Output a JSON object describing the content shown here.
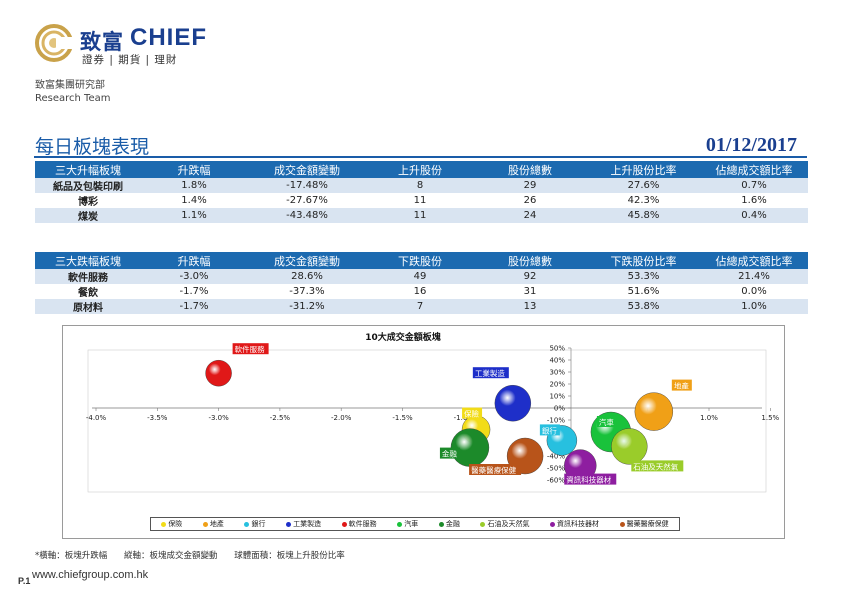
{
  "header": {
    "logo_cn": "致富",
    "logo_en": "CHIEF",
    "logo_sub": "證券 | 期貨 | 理財",
    "dept_cn": "致富集團研究部",
    "dept_en": "Research Team"
  },
  "page_title": "每日板塊表現",
  "date": "01/12/2017",
  "rise_table": {
    "headers": [
      "三大升幅板塊",
      "升跌幅",
      "成交金額變動",
      "上升股份",
      "股份總數",
      "上升股份比率",
      "佔總成交額比率"
    ],
    "rows": [
      [
        "紙品及包裝印刷",
        "1.8%",
        "-17.48%",
        "8",
        "29",
        "27.6%",
        "0.7%"
      ],
      [
        "博彩",
        "1.4%",
        "-27.67%",
        "11",
        "26",
        "42.3%",
        "1.6%"
      ],
      [
        "煤炭",
        "1.1%",
        "-43.48%",
        "11",
        "24",
        "45.8%",
        "0.4%"
      ]
    ]
  },
  "fall_table": {
    "headers": [
      "三大跌幅板塊",
      "升跌幅",
      "成交金額變動",
      "下跌股份",
      "股份總數",
      "下跌股份比率",
      "佔總成交額比率"
    ],
    "rows": [
      [
        "軟件服務",
        "-3.0%",
        "28.6%",
        "49",
        "92",
        "53.3%",
        "21.4%"
      ],
      [
        "餐飲",
        "-1.7%",
        "-37.3%",
        "16",
        "31",
        "51.6%",
        "0.0%"
      ],
      [
        "原材料",
        "-1.7%",
        "-31.2%",
        "7",
        "13",
        "53.8%",
        "1.0%"
      ]
    ]
  },
  "chart_data": {
    "type": "scatter",
    "title": "10大成交金額板塊",
    "x_ticks": [
      "-4.0%",
      "-3.5%",
      "-3.0%",
      "-2.5%",
      "-2.0%",
      "-1.5%",
      "-1.0%",
      "0.5%",
      "1.0%",
      "1.5%"
    ],
    "y_ticks": [
      "50%",
      "40%",
      "30%",
      "20%",
      "10%",
      "0%",
      "-10%",
      "-20%",
      "-30%",
      "-40%",
      "-50%",
      "-60%"
    ],
    "xlim": [
      -4.0,
      1.5
    ],
    "ylim": [
      -60,
      50
    ],
    "series": [
      {
        "name": "保險",
        "x": -0.9,
        "y": -18,
        "color": "#f2dc18",
        "label": "保險",
        "label_color": "#f2dc18"
      },
      {
        "name": "地產",
        "x": 0.55,
        "y": -3,
        "color": "#f0a017",
        "label": "地產",
        "label_color": "#f0a017"
      },
      {
        "name": "銀行",
        "x": -0.2,
        "y": -27,
        "color": "#27c0df",
        "label": "銀行",
        "label_color": "#27c0df"
      },
      {
        "name": "工業製造",
        "x": -0.6,
        "y": 4,
        "color": "#1e2fc9",
        "label": "工業製造",
        "label_color": "#1e2fc9"
      },
      {
        "name": "軟件服務",
        "x": -3.0,
        "y": 29,
        "color": "#e01818",
        "label": "軟件服務",
        "label_color": "#e01818"
      },
      {
        "name": "汽車",
        "x": 0.2,
        "y": -20,
        "color": "#19c23b",
        "label": "汽車",
        "label_color": "#19c23b"
      },
      {
        "name": "金融",
        "x": -0.95,
        "y": -33,
        "color": "#1c8a2a",
        "label": "金融",
        "label_color": "#1c8a2a"
      },
      {
        "name": "石油及天然氣",
        "x": 0.35,
        "y": -32,
        "color": "#9acc2a",
        "label": "石油及天然氣",
        "label_color": "#9acc2a"
      },
      {
        "name": "資訊科技器材",
        "x": -0.05,
        "y": -48,
        "color": "#8e1ea0",
        "label": "資訊科技器材",
        "label_color": "#8e1ea0"
      },
      {
        "name": "醫藥醫療保健",
        "x": -0.5,
        "y": -40,
        "color": "#b8541a",
        "label": "醫藥醫療保健",
        "label_color": "#b8541a"
      }
    ],
    "legend": [
      "保險",
      "地產",
      "銀行",
      "工業製造",
      "軟件服務",
      "汽車",
      "金融",
      "石油及天然氣",
      "資訊科技器材",
      "醫藥醫療保健"
    ],
    "legend_position": "bottom"
  },
  "footnote": {
    "x_axis": "*橫軸：板塊升跌幅",
    "y_axis": "縱軸：板塊成交金額變動",
    "bubble": "球體面積：板塊上升股份比率"
  },
  "website": "www.chiefgroup.com.hk",
  "page_no": "P.1"
}
